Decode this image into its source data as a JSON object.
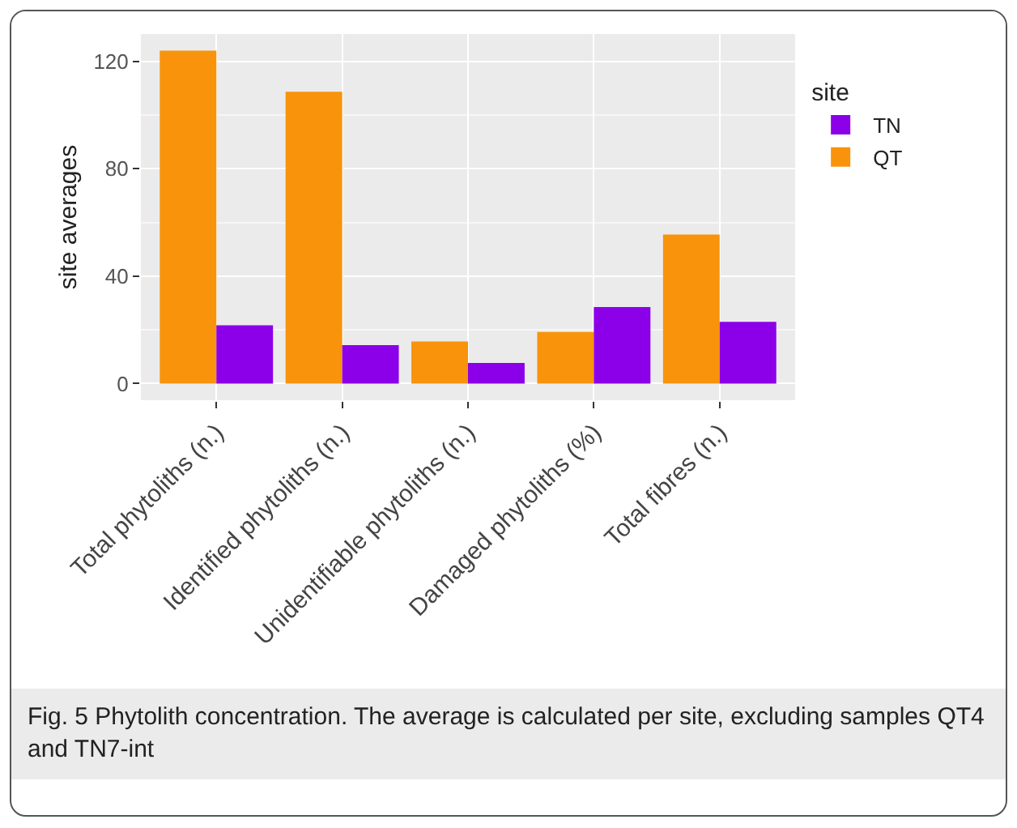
{
  "chart_data": {
    "type": "bar",
    "ylabel": "site averages",
    "legend_title": "site",
    "categories": [
      "Total phytoliths (n.)",
      "Identified phytoliths (n.)",
      "Unidentifiable phytoliths (n.)",
      "Damaged phytoliths (%)",
      "Total fibres (n.)"
    ],
    "series": [
      {
        "name": "QT",
        "color": "#f8930b",
        "values": [
          124,
          108.7,
          15.7,
          19.2,
          55.5
        ]
      },
      {
        "name": "TN",
        "color": "#8b00e8",
        "values": [
          21.7,
          14.3,
          7.7,
          28.5,
          23
        ]
      }
    ],
    "ylim": [
      -6.2,
      130.2
    ],
    "yticks": [
      0,
      40,
      80,
      120
    ],
    "grid": true,
    "legend": "right",
    "annotations": [
      "Fig. 5 Phytolith concentration. The average is calculated per site, excluding samples QT4 and TN7-int"
    ]
  }
}
